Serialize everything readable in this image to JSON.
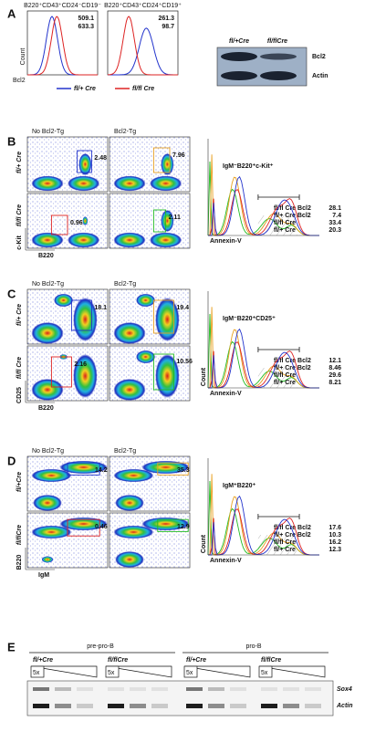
{
  "panel_a": {
    "label": "A",
    "histograms": [
      {
        "title": "B220⁺CD43⁺CD24⁻CD19⁻",
        "values": [
          {
            "text": "509.1",
            "color": "#2233cc"
          },
          {
            "text": "633.3",
            "color": "#dd2222"
          }
        ]
      },
      {
        "title": "B220⁺CD43⁺CD24⁺CD19⁺",
        "values": [
          {
            "text": "261.3",
            "color": "#2233cc"
          },
          {
            "text": "98.7",
            "color": "#dd2222"
          }
        ]
      }
    ],
    "y_axis": "Count",
    "x_axis": "Bcl2",
    "legend": [
      {
        "name": "fl/+ Cre",
        "color": "#2233cc"
      },
      {
        "name": "fl/fl Cre",
        "color": "#dd2222"
      }
    ],
    "blot": {
      "columns": [
        "fl/+Cre",
        "fl/flCre"
      ],
      "rows": [
        "Bcl2",
        "Actin"
      ]
    }
  },
  "panels": [
    {
      "label": "B",
      "columns": [
        "No Bcl2-Tg",
        "Bcl2-Tg"
      ],
      "rows": [
        "fl/+ Cre",
        "fl/fl Cre"
      ],
      "y_axis": "c-Kit",
      "x_axis": "B220",
      "gates": [
        {
          "value": "2.48",
          "color": "#2233cc"
        },
        {
          "value": "7.96",
          "color": "#e8a020"
        },
        {
          "value": "0.96",
          "color": "#dd2222"
        },
        {
          "value": "2.11",
          "color": "#22bb22"
        }
      ],
      "histogram": {
        "title": "IgM⁻B220⁺c-Kit⁺",
        "x_axis": "Annexin-V",
        "legend": [
          {
            "name": "fl/fl Cre Bcl2",
            "value": "28.1",
            "color": "#22bb22"
          },
          {
            "name": "fl/+ Cre Bcl2",
            "value": "7.4",
            "color": "#e8a020"
          },
          {
            "name": "fl/fl Cre",
            "value": "33.4",
            "color": "#dd2222"
          },
          {
            "name": "fl/+ Cre",
            "value": "20.3",
            "color": "#2233cc"
          }
        ]
      }
    },
    {
      "label": "C",
      "columns": [
        "No Bcl2-Tg",
        "Bcl2-Tg"
      ],
      "rows": [
        "fl/+ Cre",
        "fl/fl Cre"
      ],
      "y_axis": "CD25",
      "x_axis": "B220",
      "gates": [
        {
          "value": "18.1",
          "color": "#2233cc"
        },
        {
          "value": "19.4",
          "color": "#e8a020"
        },
        {
          "value": "2.16",
          "color": "#dd2222"
        },
        {
          "value": "10.56",
          "color": "#22bb22"
        }
      ],
      "histogram": {
        "title": "IgM⁻B220⁺CD25⁺",
        "y_axis": "Count",
        "x_axis": "Annexin-V",
        "legend": [
          {
            "name": "fl/fl Cre Bcl2",
            "value": "12.1",
            "color": "#22bb22"
          },
          {
            "name": "fl/+ Cre Bcl2",
            "value": "8.46",
            "color": "#e8a020"
          },
          {
            "name": "fl/fl Cre",
            "value": "29.6",
            "color": "#dd2222"
          },
          {
            "name": "fl/+ Cre",
            "value": "8.21",
            "color": "#2233cc"
          }
        ]
      }
    },
    {
      "label": "D",
      "columns": [
        "No Bcl2-Tg",
        "Bcl2-Tg"
      ],
      "rows": [
        "fl/+Cre",
        "fl/flCre"
      ],
      "y_axis": "B220",
      "x_axis": "IgM",
      "gates": [
        {
          "value": "14.2",
          "color": "#2233cc"
        },
        {
          "value": "35.3",
          "color": "#e8a020"
        },
        {
          "value": "0.46",
          "color": "#dd2222"
        },
        {
          "value": "12.9",
          "color": "#22bb22"
        }
      ],
      "histogram": {
        "title": "IgM⁺B220⁺",
        "y_axis": "Count",
        "x_axis": "Annexin-V",
        "legend": [
          {
            "name": "fl/fl Cre Bcl2",
            "value": "17.6",
            "color": "#22bb22"
          },
          {
            "name": "fl/+ Cre Bcl2",
            "value": "10.3",
            "color": "#e8a020"
          },
          {
            "name": "fl/fl Cre",
            "value": "16.2",
            "color": "#dd2222"
          },
          {
            "name": "fl/+ Cre",
            "value": "12.3",
            "color": "#2233cc"
          }
        ]
      }
    }
  ],
  "panel_e": {
    "label": "E",
    "groups": [
      {
        "name": "pre-pro-B",
        "columns": [
          {
            "name": "fl/+Cre",
            "dilution": "5x"
          },
          {
            "name": "fl/flCre",
            "dilution": "5x"
          }
        ]
      },
      {
        "name": "pro-B",
        "columns": [
          {
            "name": "fl/+Cre",
            "dilution": "5x"
          },
          {
            "name": "fl/flCre",
            "dilution": "5x"
          }
        ]
      }
    ],
    "rows": [
      "Sox4",
      "Actin"
    ]
  }
}
